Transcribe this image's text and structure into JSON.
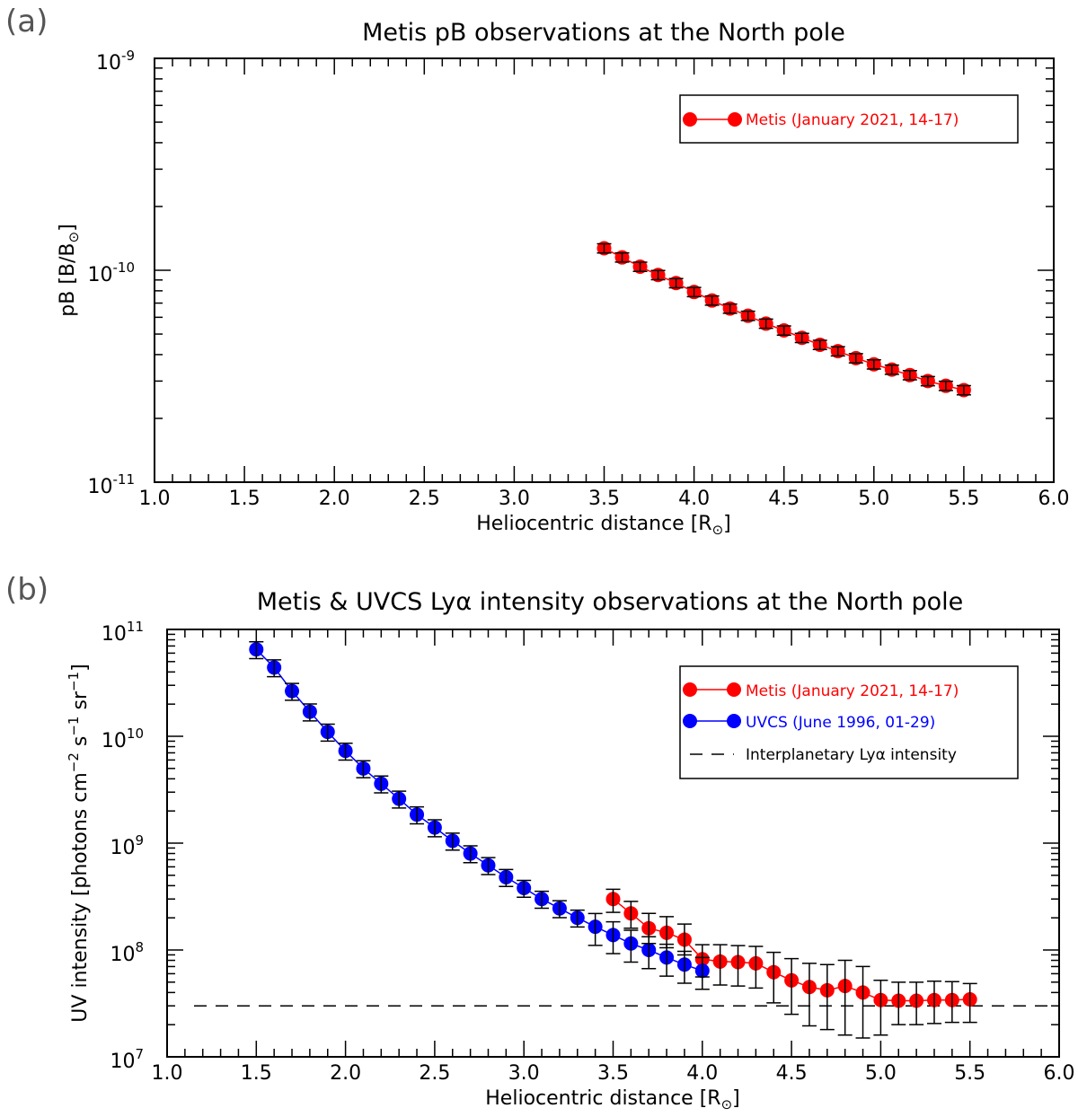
{
  "chart_data": [
    {
      "panel_label": "(a)",
      "type": "scatter",
      "title": "Metis pB observations at the North pole",
      "xlabel": "Heliocentric distance [R",
      "xlabel_sub": "⊙",
      "xlabel_end": "]",
      "ylabel": "pB [B/B",
      "ylabel_sub": "⊙",
      "ylabel_end": "]",
      "xlim": [
        1.0,
        6.0
      ],
      "ylim": [
        1e-11,
        1e-09
      ],
      "yscale": "log",
      "x_tick_labels": [
        "1.0",
        "1.5",
        "2.0",
        "2.5",
        "3.0",
        "3.5",
        "4.0",
        "4.5",
        "5.0",
        "5.5",
        "6.0"
      ],
      "y_ticks": [
        {
          "base": "10",
          "exp": "-9",
          "value": 1e-09
        },
        {
          "base": "10",
          "exp": "-10",
          "value": 1e-10
        },
        {
          "base": "10",
          "exp": "-11",
          "value": 1e-11
        }
      ],
      "legend_position": "top-right",
      "series": [
        {
          "name": "Metis (January 2021, 14-17)",
          "color": "#ff0000",
          "x": [
            3.5,
            3.6,
            3.7,
            3.8,
            3.9,
            4.0,
            4.1,
            4.2,
            4.3,
            4.4,
            4.5,
            4.6,
            4.7,
            4.8,
            4.9,
            5.0,
            5.1,
            5.2,
            5.3,
            5.4,
            5.5
          ],
          "y": [
            1.27e-10,
            1.15e-10,
            1.04e-10,
            9.5e-11,
            8.7e-11,
            7.9e-11,
            7.2e-11,
            6.6e-11,
            6.1e-11,
            5.6e-11,
            5.2e-11,
            4.8e-11,
            4.45e-11,
            4.15e-11,
            3.85e-11,
            3.6e-11,
            3.4e-11,
            3.2e-11,
            3e-11,
            2.85e-11,
            2.72e-11
          ],
          "err_frac": 0.05
        }
      ]
    },
    {
      "panel_label": "(b)",
      "type": "scatter",
      "title": "Metis & UVCS Lyα intensity observations at the North pole",
      "xlabel": "Heliocentric distance [R",
      "xlabel_sub": "⊙",
      "xlabel_end": "]",
      "ylabel": "UV intensity [photons cm",
      "ylabel_sup1": "−2",
      "ylabel_mid1": " s",
      "ylabel_sup2": "−1",
      "ylabel_mid2": " sr",
      "ylabel_sup3": "−1",
      "ylabel_end": "]",
      "xlim": [
        1.0,
        6.0
      ],
      "ylim": [
        10000000.0,
        100000000000.0
      ],
      "yscale": "log",
      "x_tick_labels": [
        "1.0",
        "1.5",
        "2.0",
        "2.5",
        "3.0",
        "3.5",
        "4.0",
        "4.5",
        "5.0",
        "5.5",
        "6.0"
      ],
      "y_ticks": [
        {
          "base": "10",
          "exp": "11",
          "value": 100000000000.0
        },
        {
          "base": "10",
          "exp": "10",
          "value": 10000000000.0
        },
        {
          "base": "10",
          "exp": "9",
          "value": 1000000000.0
        },
        {
          "base": "10",
          "exp": "8",
          "value": 100000000.0
        },
        {
          "base": "10",
          "exp": "7",
          "value": 10000000.0
        }
      ],
      "legend_position": "top-right",
      "interplanetary_level": 30000000.0,
      "series": [
        {
          "name": "Metis (January 2021, 14-17)",
          "color": "#ff0000",
          "x": [
            3.5,
            3.6,
            3.7,
            3.8,
            3.9,
            4.0,
            4.1,
            4.2,
            4.3,
            4.4,
            4.5,
            4.6,
            4.7,
            4.8,
            4.9,
            5.0,
            5.1,
            5.2,
            5.3,
            5.4,
            5.5
          ],
          "y": [
            300000000.0,
            220000000.0,
            160000000.0,
            145000000.0,
            125000000.0,
            82000000.0,
            78000000.0,
            77000000.0,
            75000000.0,
            62000000.0,
            52000000.0,
            45000000.0,
            42000000.0,
            46000000.0,
            40000000.0,
            34000000.0,
            33500000.0,
            33500000.0,
            34000000.0,
            34000000.0,
            34500000.0
          ],
          "err_lo": [
            225000000.0,
            160000000.0,
            115000000.0,
            105000000.0,
            90000000.0,
            56000000.0,
            47000000.0,
            46000000.0,
            44000000.0,
            32000000.0,
            25000000.0,
            19500000.0,
            18000000.0,
            16000000.0,
            15000000.0,
            16000000.0,
            20000000.0,
            20000000.0,
            20500000.0,
            21000000.0,
            21000000.0
          ],
          "err_hi": [
            370000000.0,
            285000000.0,
            220000000.0,
            205000000.0,
            175000000.0,
            112000000.0,
            112000000.0,
            110000000.0,
            108000000.0,
            95000000.0,
            83000000.0,
            75000000.0,
            73000000.0,
            80000000.0,
            70000000.0,
            52000000.0,
            50000000.0,
            50000000.0,
            51000000.0,
            50500000.0,
            48500000.0
          ]
        },
        {
          "name": "UVCS (June 1996, 01-29)",
          "color": "#0000ff",
          "x": [
            1.5,
            1.6,
            1.7,
            1.8,
            1.9,
            2.0,
            2.1,
            2.2,
            2.3,
            2.4,
            2.5,
            2.6,
            2.7,
            2.8,
            2.9,
            3.0,
            3.1,
            3.2,
            3.3,
            3.4,
            3.5,
            3.6,
            3.7,
            3.8,
            3.9,
            4.0
          ],
          "y": [
            65000000000.0,
            44000000000.0,
            26500000000.0,
            17000000000.0,
            11000000000.0,
            7300000000.0,
            5000000000.0,
            3600000000.0,
            2600000000.0,
            1850000000.0,
            1400000000.0,
            1050000000.0,
            800000000.0,
            620000000.0,
            480000000.0,
            380000000.0,
            300000000.0,
            245000000.0,
            200000000.0,
            165000000.0,
            138000000.0,
            115000000.0,
            100000000.0,
            85000000.0,
            73000000.0,
            64000000.0
          ],
          "err_frac": 0.18,
          "err_frac_tail": 0.33
        }
      ],
      "reference_line": {
        "name": "Interplanetary Lyα intensity",
        "color": "#000000",
        "style": "dashed"
      }
    }
  ]
}
